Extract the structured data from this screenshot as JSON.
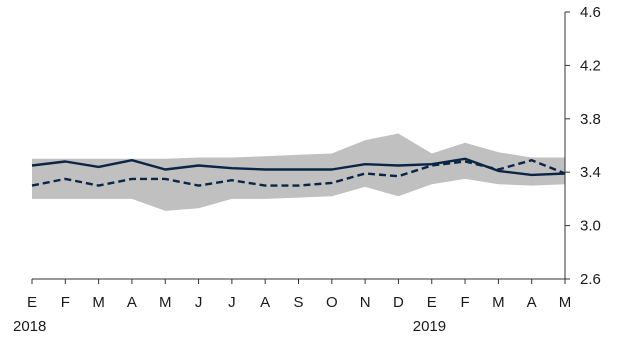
{
  "chart_data": {
    "type": "line",
    "x_month_labels": [
      "E",
      "F",
      "M",
      "A",
      "M",
      "J",
      "J",
      "A",
      "S",
      "O",
      "N",
      "D",
      "E",
      "F",
      "M",
      "A",
      "M"
    ],
    "x_year_labels": [
      {
        "label": "2018",
        "index": 0
      },
      {
        "label": "2019",
        "index": 12
      }
    ],
    "y_axis": {
      "position": "right",
      "ylim": [
        2.6,
        4.6
      ],
      "ticks": [
        "2.6",
        "3.0",
        "3.4",
        "3.8",
        "4.2",
        "4.6"
      ],
      "tick_values": [
        2.6,
        3.0,
        3.4,
        3.8,
        4.2,
        4.6
      ]
    },
    "band": {
      "upper": [
        3.5,
        3.5,
        3.5,
        3.5,
        3.5,
        3.51,
        3.51,
        3.52,
        3.53,
        3.54,
        3.64,
        3.69,
        3.54,
        3.62,
        3.55,
        3.51,
        3.51
      ],
      "lower": [
        3.2,
        3.2,
        3.2,
        3.2,
        3.11,
        3.13,
        3.2,
        3.2,
        3.21,
        3.22,
        3.29,
        3.22,
        3.31,
        3.35,
        3.31,
        3.3,
        3.31
      ],
      "color": "#c0c0c0"
    },
    "series": [
      {
        "style": "solid",
        "color": "#0b2545",
        "values": [
          3.45,
          3.48,
          3.44,
          3.49,
          3.42,
          3.45,
          3.43,
          3.42,
          3.42,
          3.42,
          3.46,
          3.45,
          3.46,
          3.5,
          3.41,
          3.38,
          3.39
        ]
      },
      {
        "style": "dashed",
        "color": "#0b2545",
        "values": [
          3.3,
          3.35,
          3.3,
          3.35,
          3.35,
          3.3,
          3.34,
          3.3,
          3.3,
          3.32,
          3.39,
          3.37,
          3.45,
          3.48,
          3.42,
          3.49,
          3.39
        ]
      }
    ]
  }
}
